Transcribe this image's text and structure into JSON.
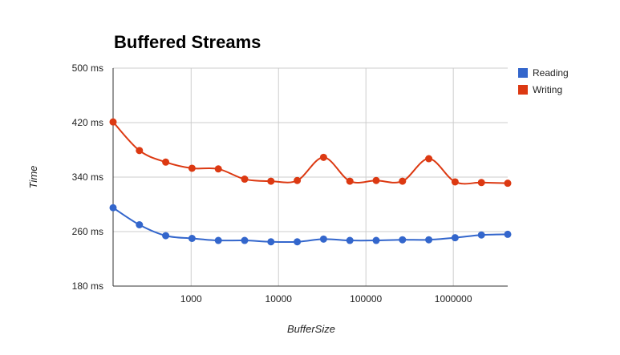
{
  "chart_data": {
    "type": "line",
    "title": "Buffered Streams",
    "xlabel": "BufferSize",
    "ylabel": "Time",
    "x_scale": "log",
    "x": [
      128,
      256,
      512,
      1024,
      2048,
      4096,
      8192,
      16384,
      32768,
      65536,
      131072,
      262144,
      524288,
      1048576,
      2097152,
      4194304
    ],
    "xlim": [
      128,
      4194304
    ],
    "ylim": [
      180,
      500
    ],
    "x_ticks": [
      1000,
      10000,
      100000,
      1000000
    ],
    "x_tick_labels": [
      "1000",
      "10000",
      "100000",
      "1000000"
    ],
    "y_ticks": [
      180,
      260,
      340,
      420,
      500
    ],
    "y_tick_labels": [
      "180 ms",
      "260 ms",
      "340 ms",
      "420 ms",
      "500 ms"
    ],
    "grid": true,
    "legend_position": "right",
    "series": [
      {
        "name": "Reading",
        "color": "#3366cc",
        "values": [
          295,
          270,
          254,
          250,
          247,
          247,
          245,
          245,
          249,
          247,
          247,
          248,
          248,
          251,
          255,
          256
        ]
      },
      {
        "name": "Writing",
        "color": "#dc3912",
        "values": [
          421,
          379,
          362,
          353,
          352,
          337,
          334,
          335,
          369,
          334,
          335,
          334,
          367,
          333,
          332,
          331
        ]
      }
    ]
  }
}
